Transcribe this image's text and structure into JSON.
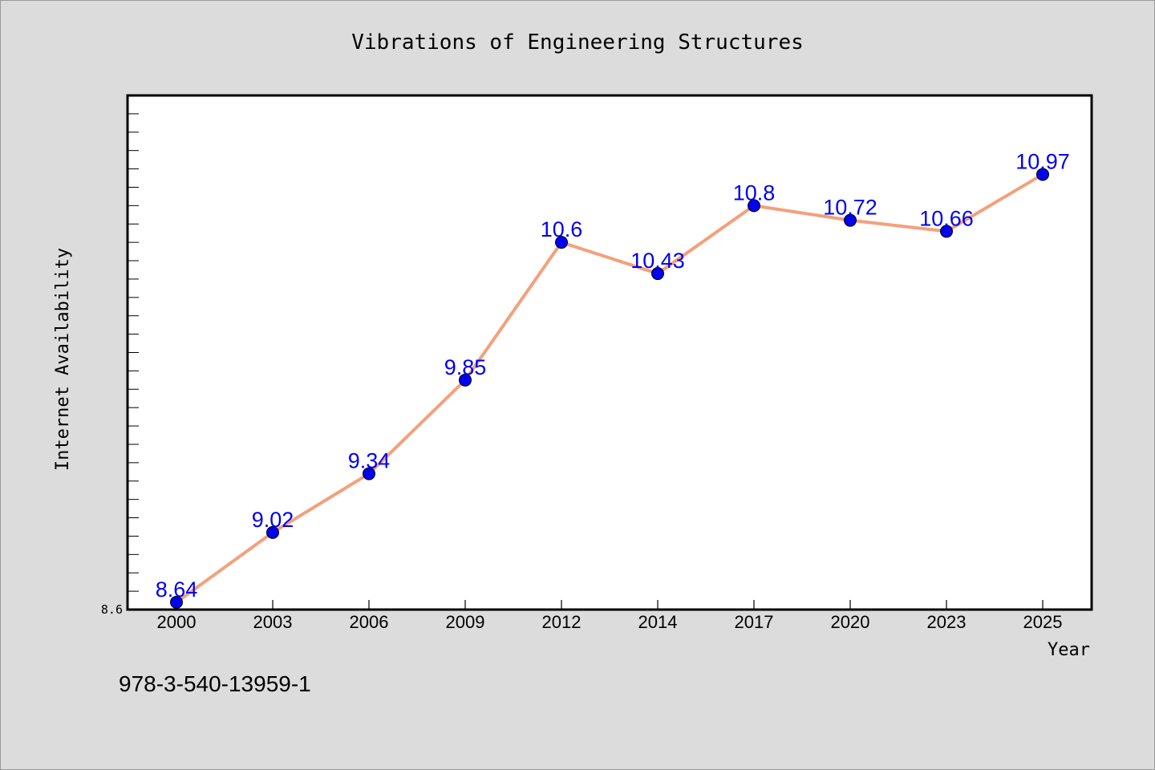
{
  "chart_data": {
    "type": "line",
    "title": "Vibrations of Engineering Structures",
    "xlabel": "Year",
    "ylabel": "Internet Availability",
    "categories": [
      "2000",
      "2003",
      "2006",
      "2009",
      "2012",
      "2014",
      "2017",
      "2020",
      "2023",
      "2025"
    ],
    "series": [
      {
        "values": [
          8.64,
          9.02,
          9.34,
          9.85,
          10.6,
          10.43,
          10.8,
          10.72,
          10.66,
          10.97
        ]
      }
    ],
    "data_labels": [
      "8.64",
      "9.02",
      "9.34",
      "9.85",
      "10.6",
      "10.43",
      "10.8",
      "10.72",
      "10.66",
      "10.97"
    ],
    "ylim": [
      8.6,
      11.4
    ],
    "y_tick_labels": [
      "8.6"
    ],
    "grid": false,
    "colors": {
      "line": "#f4a07c",
      "marker": "#0000ee",
      "data_label": "#0000ee",
      "plot_background": "#ffffff",
      "figure_background": "#dcdcdc"
    }
  },
  "footer": {
    "isbn": "978-3-540-13959-1"
  }
}
